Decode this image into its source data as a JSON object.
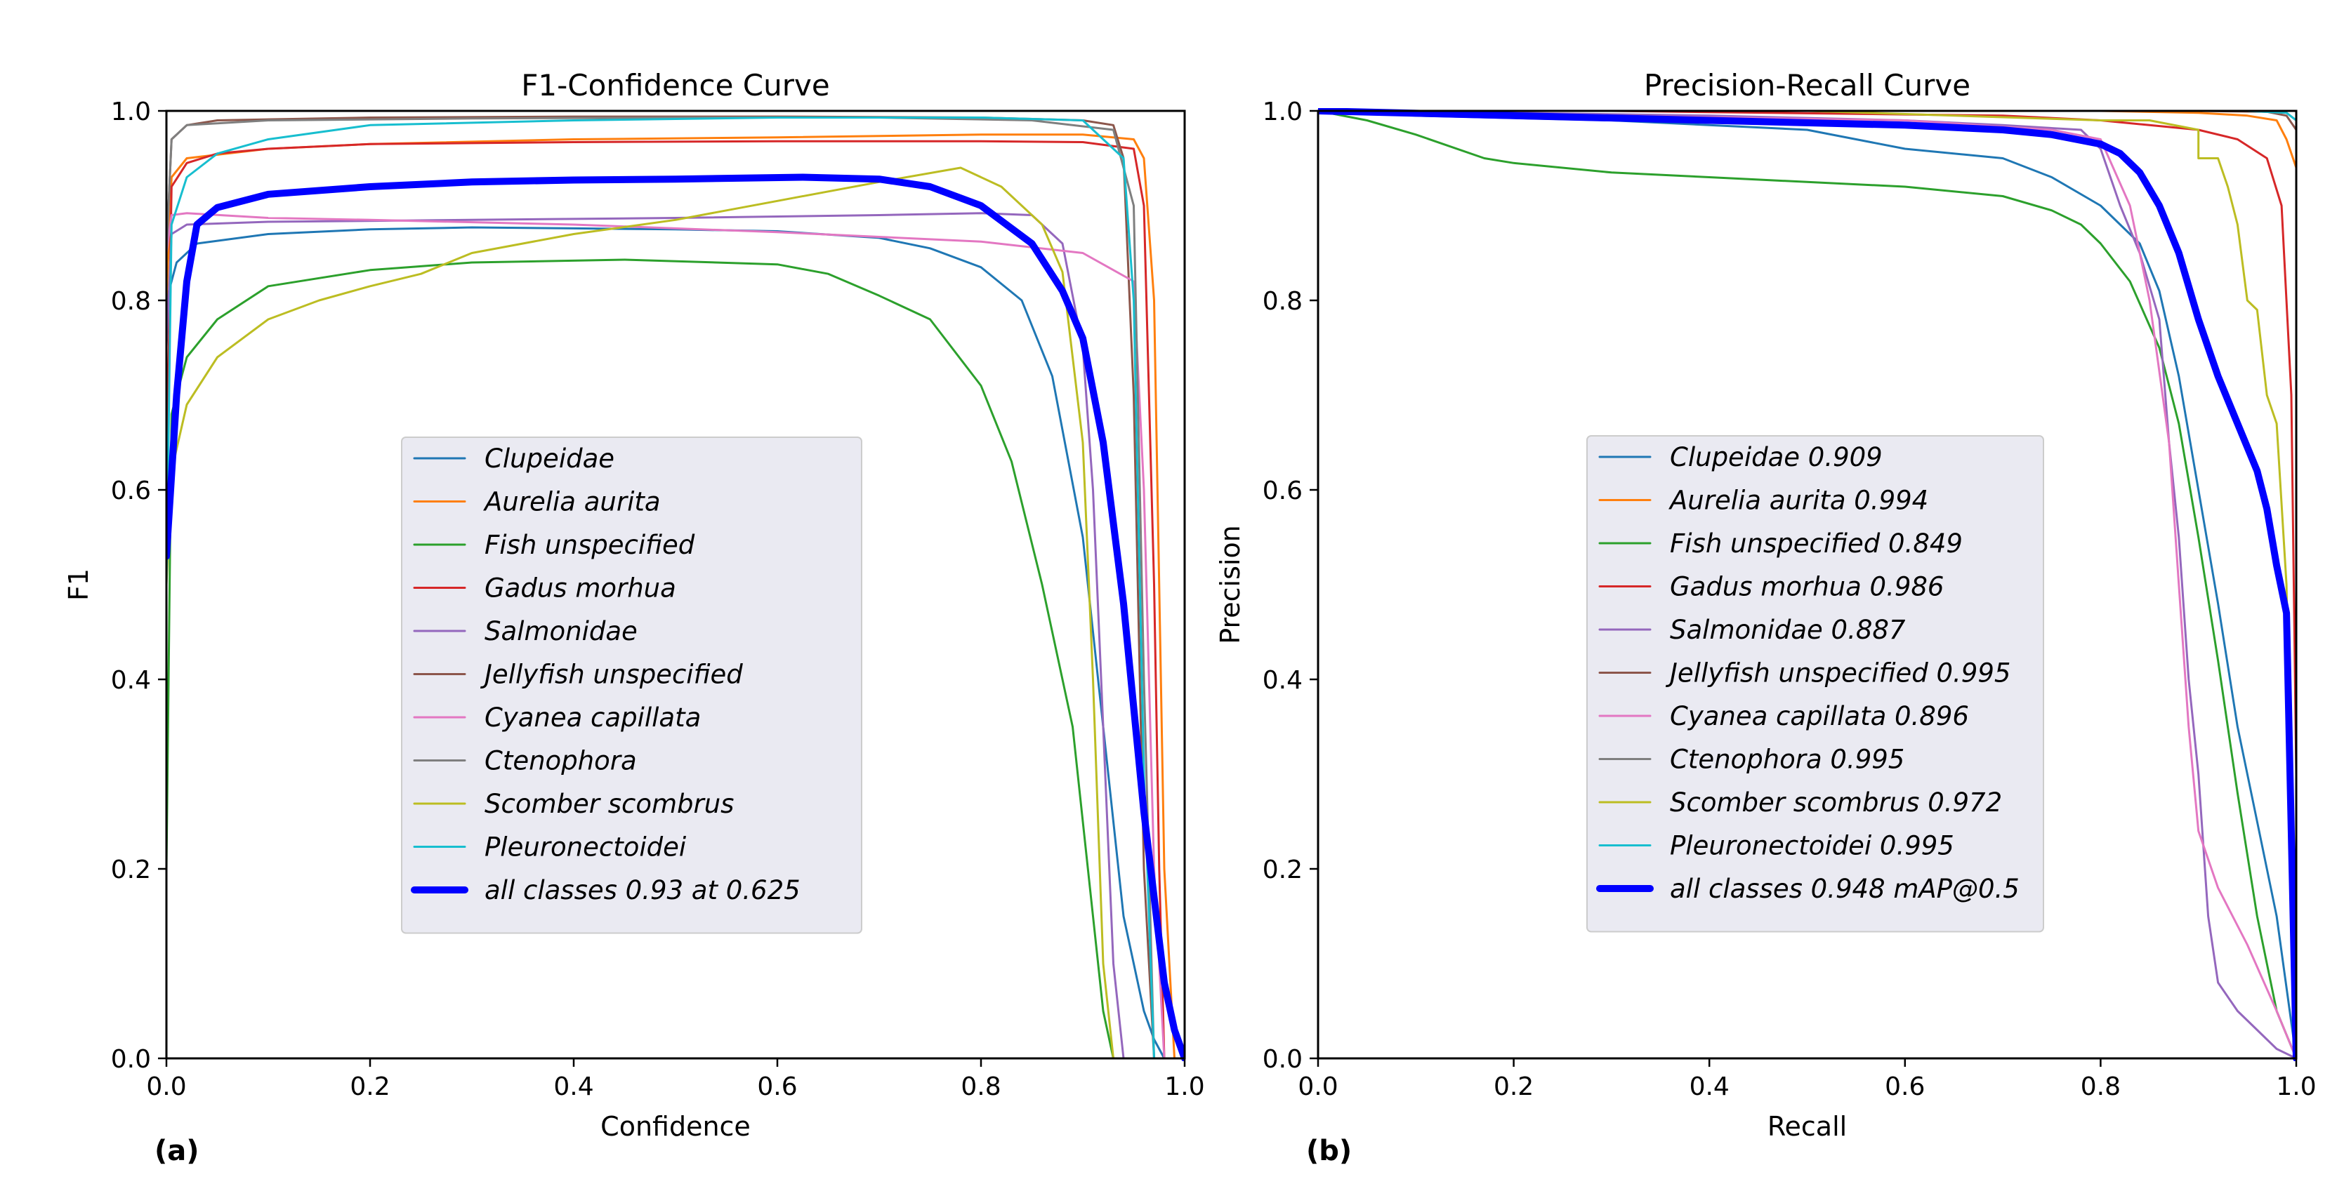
{
  "chart_data": [
    {
      "type": "line",
      "panel_label": "(a)",
      "title": "F1-Confidence Curve",
      "xlabel": "Confidence",
      "ylabel": "F1",
      "xlim": [
        0,
        1
      ],
      "ylim": [
        0,
        1
      ],
      "xticks": [
        "0.0",
        "0.2",
        "0.4",
        "0.6",
        "0.8",
        "1.0"
      ],
      "yticks": [
        "0.0",
        "0.2",
        "0.4",
        "0.6",
        "0.8",
        "1.0"
      ],
      "legend_position": "center-left",
      "series": [
        {
          "name": "Clupeidae",
          "color": "#1f77b4",
          "width": 3,
          "x": [
            0,
            0.01,
            0.03,
            0.1,
            0.2,
            0.3,
            0.4,
            0.5,
            0.6,
            0.7,
            0.75,
            0.8,
            0.84,
            0.87,
            0.9,
            0.92,
            0.94,
            0.96,
            0.97,
            0.98
          ],
          "y": [
            0.8,
            0.84,
            0.86,
            0.87,
            0.875,
            0.877,
            0.876,
            0.875,
            0.873,
            0.866,
            0.855,
            0.835,
            0.8,
            0.72,
            0.55,
            0.35,
            0.15,
            0.05,
            0.02,
            0
          ]
        },
        {
          "name": "Aurelia aurita",
          "color": "#ff7f0e",
          "width": 3,
          "x": [
            0,
            0.005,
            0.02,
            0.1,
            0.2,
            0.4,
            0.6,
            0.8,
            0.9,
            0.95,
            0.96,
            0.97,
            0.98,
            0.99
          ],
          "y": [
            0.8,
            0.93,
            0.95,
            0.96,
            0.965,
            0.97,
            0.972,
            0.975,
            0.975,
            0.97,
            0.95,
            0.8,
            0.2,
            0
          ]
        },
        {
          "name": "Fish unspecified",
          "color": "#2ca02c",
          "width": 3,
          "x": [
            0,
            0.005,
            0.02,
            0.05,
            0.1,
            0.2,
            0.3,
            0.45,
            0.6,
            0.65,
            0.7,
            0.75,
            0.8,
            0.83,
            0.86,
            0.89,
            0.91,
            0.92,
            0.93
          ],
          "y": [
            0.2,
            0.68,
            0.74,
            0.78,
            0.815,
            0.832,
            0.84,
            0.843,
            0.838,
            0.828,
            0.805,
            0.78,
            0.71,
            0.63,
            0.5,
            0.35,
            0.15,
            0.05,
            0
          ]
        },
        {
          "name": "Gadus morhua",
          "color": "#d62728",
          "width": 3,
          "x": [
            0,
            0.005,
            0.02,
            0.05,
            0.1,
            0.2,
            0.4,
            0.6,
            0.8,
            0.9,
            0.95,
            0.96,
            0.97,
            0.975,
            0.98
          ],
          "y": [
            0.6,
            0.92,
            0.945,
            0.955,
            0.96,
            0.965,
            0.967,
            0.968,
            0.968,
            0.967,
            0.96,
            0.9,
            0.5,
            0.2,
            0
          ]
        },
        {
          "name": "Salmonidae",
          "color": "#9467bd",
          "width": 3,
          "x": [
            0,
            0.005,
            0.02,
            0.1,
            0.3,
            0.5,
            0.7,
            0.8,
            0.85,
            0.88,
            0.9,
            0.91,
            0.92,
            0.93,
            0.94
          ],
          "y": [
            0.75,
            0.87,
            0.88,
            0.883,
            0.885,
            0.887,
            0.89,
            0.892,
            0.89,
            0.86,
            0.75,
            0.6,
            0.35,
            0.1,
            0
          ]
        },
        {
          "name": "Jellyfish unspecified",
          "color": "#8c564b",
          "width": 3,
          "x": [
            0,
            0.005,
            0.02,
            0.05,
            0.2,
            0.4,
            0.6,
            0.8,
            0.9,
            0.93,
            0.94,
            0.95,
            0.96,
            0.97
          ],
          "y": [
            0.85,
            0.97,
            0.985,
            0.99,
            0.993,
            0.994,
            0.994,
            0.993,
            0.99,
            0.985,
            0.95,
            0.7,
            0.2,
            0
          ]
        },
        {
          "name": "Cyanea capillata",
          "color": "#e377c2",
          "width": 3,
          "x": [
            0,
            0.005,
            0.02,
            0.1,
            0.2,
            0.4,
            0.6,
            0.8,
            0.9,
            0.95,
            0.96,
            0.97,
            0.98
          ],
          "y": [
            0.85,
            0.89,
            0.892,
            0.887,
            0.885,
            0.88,
            0.872,
            0.862,
            0.85,
            0.82,
            0.6,
            0.2,
            0
          ]
        },
        {
          "name": "Ctenophora",
          "color": "#7f7f7f",
          "width": 3,
          "x": [
            0,
            0.005,
            0.02,
            0.1,
            0.3,
            0.5,
            0.7,
            0.85,
            0.93,
            0.95,
            0.96,
            0.97
          ],
          "y": [
            0.85,
            0.97,
            0.985,
            0.99,
            0.992,
            0.993,
            0.993,
            0.99,
            0.98,
            0.9,
            0.4,
            0
          ]
        },
        {
          "name": "Scomber scombrus",
          "color": "#bcbd22",
          "width": 3,
          "x": [
            0,
            0.005,
            0.02,
            0.05,
            0.1,
            0.15,
            0.2,
            0.25,
            0.3,
            0.4,
            0.5,
            0.6,
            0.7,
            0.78,
            0.82,
            0.86,
            0.88,
            0.9,
            0.91,
            0.92,
            0.93
          ],
          "y": [
            0.5,
            0.62,
            0.69,
            0.74,
            0.78,
            0.8,
            0.815,
            0.828,
            0.85,
            0.87,
            0.885,
            0.905,
            0.925,
            0.94,
            0.92,
            0.88,
            0.83,
            0.65,
            0.4,
            0.1,
            0
          ]
        },
        {
          "name": "Pleuronectoidei",
          "color": "#17becf",
          "width": 3,
          "x": [
            0,
            0.005,
            0.02,
            0.05,
            0.1,
            0.2,
            0.4,
            0.6,
            0.8,
            0.9,
            0.94,
            0.95,
            0.96,
            0.97
          ],
          "y": [
            0.5,
            0.88,
            0.93,
            0.955,
            0.97,
            0.985,
            0.99,
            0.993,
            0.993,
            0.99,
            0.95,
            0.8,
            0.3,
            0
          ]
        },
        {
          "name": "all classes 0.93 at 0.625",
          "color": "#0000ff",
          "width": 10,
          "x": [
            0,
            0.01,
            0.02,
            0.03,
            0.05,
            0.1,
            0.2,
            0.3,
            0.4,
            0.5,
            0.625,
            0.7,
            0.75,
            0.8,
            0.85,
            0.88,
            0.9,
            0.92,
            0.94,
            0.96,
            0.98,
            0.99,
            1.0
          ],
          "y": [
            0.53,
            0.7,
            0.82,
            0.88,
            0.898,
            0.912,
            0.92,
            0.925,
            0.927,
            0.928,
            0.93,
            0.928,
            0.92,
            0.9,
            0.86,
            0.81,
            0.76,
            0.65,
            0.48,
            0.26,
            0.08,
            0.03,
            0.0
          ]
        }
      ]
    },
    {
      "type": "line",
      "panel_label": "(b)",
      "title": "Precision-Recall Curve",
      "xlabel": "Recall",
      "ylabel": "Precision",
      "xlim": [
        0,
        1
      ],
      "ylim": [
        0,
        1
      ],
      "xticks": [
        "0.0",
        "0.2",
        "0.4",
        "0.6",
        "0.8",
        "1.0"
      ],
      "yticks": [
        "0.0",
        "0.2",
        "0.4",
        "0.6",
        "0.8",
        "1.0"
      ],
      "legend_position": "center-left",
      "series": [
        {
          "name": "Clupeidae 0.909",
          "color": "#1f77b4",
          "width": 3,
          "x": [
            0,
            0.1,
            0.3,
            0.5,
            0.6,
            0.7,
            0.75,
            0.8,
            0.84,
            0.86,
            0.88,
            0.9,
            0.92,
            0.94,
            0.96,
            0.98,
            1.0
          ],
          "y": [
            1,
            0.995,
            0.99,
            0.98,
            0.96,
            0.95,
            0.93,
            0.9,
            0.86,
            0.81,
            0.72,
            0.6,
            0.48,
            0.35,
            0.25,
            0.15,
            0
          ]
        },
        {
          "name": "Aurelia aurita 0.994",
          "color": "#ff7f0e",
          "width": 3,
          "x": [
            0,
            0.5,
            0.8,
            0.9,
            0.95,
            0.98,
            0.99,
            1.0,
            1.0
          ],
          "y": [
            1,
            1,
            1,
            0.998,
            0.995,
            0.99,
            0.97,
            0.94,
            0
          ]
        },
        {
          "name": "Fish unspecified 0.849",
          "color": "#2ca02c",
          "width": 3,
          "x": [
            0,
            0.05,
            0.1,
            0.17,
            0.2,
            0.3,
            0.4,
            0.5,
            0.6,
            0.7,
            0.75,
            0.78,
            0.8,
            0.83,
            0.86,
            0.88,
            0.9,
            0.92,
            0.94,
            0.96,
            0.98,
            1.0
          ],
          "y": [
            1,
            0.99,
            0.975,
            0.95,
            0.945,
            0.935,
            0.93,
            0.925,
            0.92,
            0.91,
            0.895,
            0.88,
            0.86,
            0.82,
            0.75,
            0.67,
            0.55,
            0.42,
            0.28,
            0.15,
            0.05,
            0
          ]
        },
        {
          "name": "Gadus morhua 0.986",
          "color": "#d62728",
          "width": 3,
          "x": [
            0,
            0.3,
            0.7,
            0.8,
            0.85,
            0.9,
            0.94,
            0.97,
            0.985,
            0.995,
            1.0,
            1.0
          ],
          "y": [
            1,
            1,
            0.995,
            0.99,
            0.985,
            0.98,
            0.97,
            0.95,
            0.9,
            0.7,
            0.3,
            0
          ]
        },
        {
          "name": "Salmonidae 0.887",
          "color": "#9467bd",
          "width": 3,
          "x": [
            0,
            0.2,
            0.4,
            0.6,
            0.7,
            0.78,
            0.8,
            0.82,
            0.84,
            0.86,
            0.87,
            0.88,
            0.89,
            0.9,
            0.91,
            0.92,
            0.94,
            0.96,
            0.98,
            1.0
          ],
          "y": [
            1,
            0.998,
            0.995,
            0.99,
            0.985,
            0.98,
            0.96,
            0.9,
            0.85,
            0.78,
            0.65,
            0.55,
            0.4,
            0.3,
            0.15,
            0.08,
            0.05,
            0.03,
            0.01,
            0
          ]
        },
        {
          "name": "Jellyfish unspecified 0.995",
          "color": "#8c564b",
          "width": 3,
          "x": [
            0,
            0.5,
            0.9,
            0.97,
            0.99,
            1.0,
            1.0
          ],
          "y": [
            1,
            1,
            1,
            0.999,
            0.995,
            0.98,
            0
          ]
        },
        {
          "name": "Cyanea capillata 0.896",
          "color": "#e377c2",
          "width": 3,
          "x": [
            0,
            0.3,
            0.6,
            0.75,
            0.8,
            0.83,
            0.85,
            0.87,
            0.88,
            0.89,
            0.9,
            0.92,
            0.95,
            0.98,
            1.0
          ],
          "y": [
            1,
            0.995,
            0.99,
            0.98,
            0.97,
            0.9,
            0.8,
            0.65,
            0.5,
            0.35,
            0.24,
            0.18,
            0.12,
            0.05,
            0
          ]
        },
        {
          "name": "Ctenophora 0.995",
          "color": "#7f7f7f",
          "width": 3,
          "x": [
            0,
            0.5,
            0.95,
            0.99,
            1.0,
            1.0
          ],
          "y": [
            1,
            1,
            1,
            0.998,
            0.99,
            0
          ]
        },
        {
          "name": "Scomber scombrus 0.972",
          "color": "#bcbd22",
          "width": 3,
          "x": [
            0,
            0.5,
            0.8,
            0.85,
            0.9,
            0.9,
            0.92,
            0.93,
            0.94,
            0.95,
            0.96,
            0.97,
            0.98,
            0.99,
            1.0
          ],
          "y": [
            1,
            1,
            0.99,
            0.99,
            0.98,
            0.95,
            0.95,
            0.92,
            0.88,
            0.8,
            0.79,
            0.7,
            0.67,
            0.5,
            0
          ]
        },
        {
          "name": "Pleuronectoidei 0.995",
          "color": "#17becf",
          "width": 3,
          "x": [
            0,
            0.5,
            0.95,
            0.99,
            1.0,
            1.0
          ],
          "y": [
            1,
            1,
            1,
            0.998,
            0.99,
            0
          ]
        },
        {
          "name": "all classes 0.948 mAP@0.5",
          "color": "#0000ff",
          "width": 10,
          "x": [
            0,
            0.2,
            0.4,
            0.6,
            0.7,
            0.75,
            0.8,
            0.82,
            0.84,
            0.86,
            0.88,
            0.9,
            0.92,
            0.94,
            0.96,
            0.97,
            0.98,
            0.99,
            1.0
          ],
          "y": [
            1,
            0.995,
            0.99,
            0.985,
            0.98,
            0.975,
            0.965,
            0.955,
            0.935,
            0.9,
            0.85,
            0.78,
            0.72,
            0.67,
            0.62,
            0.58,
            0.52,
            0.47,
            0.0
          ]
        }
      ]
    }
  ]
}
